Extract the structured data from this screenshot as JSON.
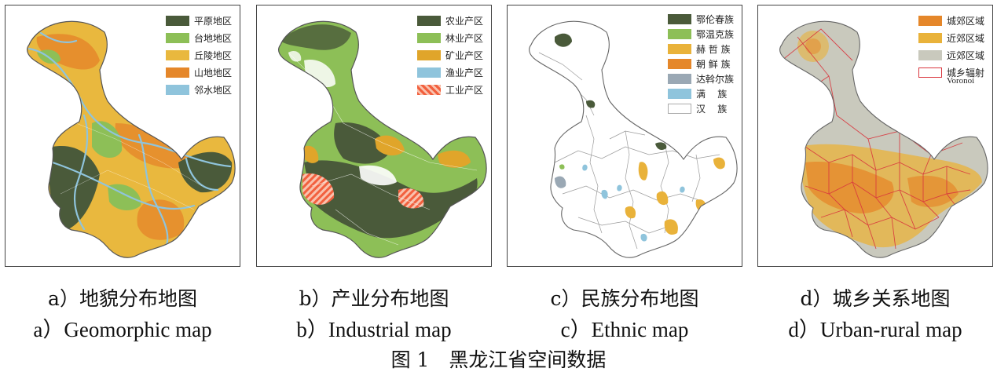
{
  "panels": [
    {
      "id": "a",
      "legend": [
        {
          "label": "平原地区",
          "color": "#4a5a3a"
        },
        {
          "label": "台地地区",
          "color": "#8dbf57"
        },
        {
          "label": "丘陵地区",
          "color": "#e9b83e"
        },
        {
          "label": "山地地区",
          "color": "#e5872a"
        },
        {
          "label": "邻水地区",
          "color": "#8fc4dc"
        }
      ],
      "caption_cn": "a）地貌分布地图",
      "caption_en": "a）Geomorphic map"
    },
    {
      "id": "b",
      "legend": [
        {
          "label": "农业产区",
          "color": "#4a5a3a"
        },
        {
          "label": "林业产区",
          "color": "#8dbf57"
        },
        {
          "label": "矿业产区",
          "color": "#e0a52a"
        },
        {
          "label": "渔业产区",
          "color": "#8fc4dc"
        },
        {
          "label": "工业产区",
          "color": "#f28a6a"
        }
      ],
      "caption_cn": "b）产业分布地图",
      "caption_en": "b）Industrial map"
    },
    {
      "id": "c",
      "legend": [
        {
          "label": "鄂伦春族",
          "color": "#4a5a3a"
        },
        {
          "label": "鄂温克族",
          "color": "#8dbf57"
        },
        {
          "label": "赫 哲 族",
          "color": "#e9b23a"
        },
        {
          "label": "朝 鲜 族",
          "color": "#e5872a"
        },
        {
          "label": "达斡尔族",
          "color": "#9aa8b4"
        },
        {
          "label": "满    族",
          "color": "#8fc4dc"
        },
        {
          "label": "汉    族",
          "color": "#ffffff"
        }
      ],
      "caption_cn": "c）民族分布地图",
      "caption_en": "c）Ethnic map"
    },
    {
      "id": "d",
      "legend": [
        {
          "label": "城郊区域",
          "color": "#e5872a"
        },
        {
          "label": "近郊区域",
          "color": "#e9b23a"
        },
        {
          "label": "远郊区域",
          "color": "#c9c9bd"
        },
        {
          "label": "城乡辐射",
          "color": "#ffffff",
          "border": "#d9363e"
        }
      ],
      "legend_note": "Voronoi",
      "caption_cn": "d）城乡关系地图",
      "caption_en": "d）Urban-rural map"
    }
  ],
  "figure_title": "图 1　黑龙江省空间数据"
}
